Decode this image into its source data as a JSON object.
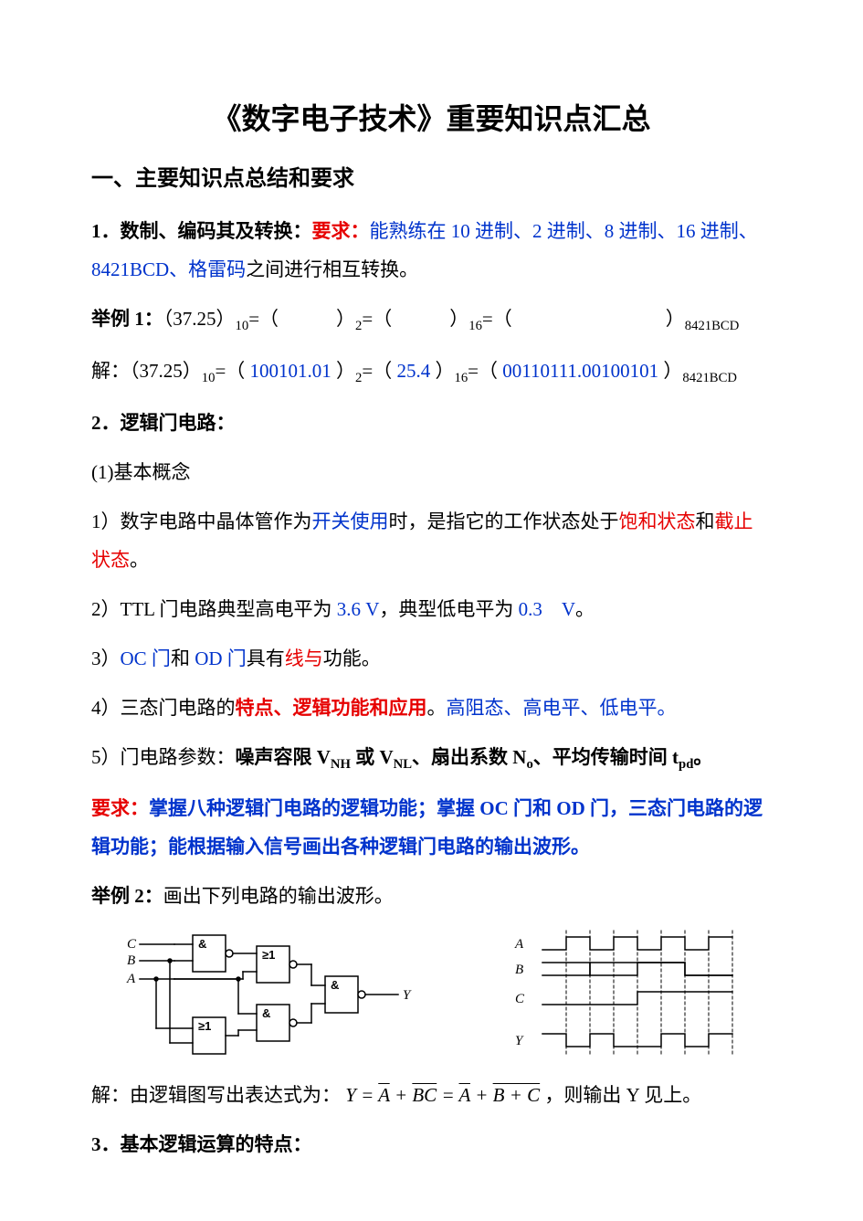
{
  "title": "《数字电子技术》重要知识点汇总",
  "section1_head": "一、主要知识点总结和要求",
  "p1_a": "1．数制、编码其及转换：",
  "p1_b": "要求：",
  "p1_c": "能熟练在 10 进制、2 进制、8 进制、16 进制、8421BCD、格雷码",
  "p1_d": "之间进行相互转换。",
  "p2_a": "举例 1：",
  "p2_b": "（37.25）",
  "p2_sub10a": "10",
  "p2_c": "=（　　　）",
  "p2_sub2": "2",
  "p2_d": "=（　　　）",
  "p2_sub16": "16",
  "p2_e": "=（　　　　　　　　）",
  "p2_sub8421a": "8421BCD",
  "p3_a": "解：（37.25）",
  "p3_sub10b": "10",
  "p3_b": "=（ ",
  "p3_v1": "100101.01",
  "p3_c": " ）",
  "p3_sub2b": "2",
  "p3_d": "=（ ",
  "p3_v2": "25.4",
  "p3_e": " ）",
  "p3_sub16b": "16",
  "p3_f": "=（ ",
  "p3_v3": "00110111.00100101",
  "p3_g": " ）",
  "p3_sub8421b": "8421BCD",
  "p4": "2．逻辑门电路：",
  "p5": "(1)基本概念",
  "p6_a": "1）数字电路中晶体管作为",
  "p6_b": "开关使用",
  "p6_c": "时，是指它的工作状态处于",
  "p6_d": "饱和状态",
  "p6_e": "和",
  "p6_f": "截止状态",
  "p6_g": "。",
  "p7_a": "2）TTL 门电路典型高电平为 ",
  "p7_b": "3.6 V",
  "p7_c": "，典型低电平为 ",
  "p7_d": "0.3　V",
  "p7_e": "。",
  "p8_a": "3）",
  "p8_b": "OC 门",
  "p8_c": "和 ",
  "p8_d": "OD 门",
  "p8_e": "具有",
  "p8_f": "线与",
  "p8_g": "功能。",
  "p9_a": "4）三态门电路的",
  "p9_b": "特点、逻辑功能和应用",
  "p9_c": "。",
  "p9_d": "高阻态、高电平、低电平。",
  "p10_a": "5）门电路参数：",
  "p10_b": "噪声容限 V",
  "p10_nh": "NH",
  "p10_c": " 或 V",
  "p10_nl": "NL",
  "p10_d": "、扇出系数 N",
  "p10_o": "o",
  "p10_e": "、平均传输时间 t",
  "p10_pd": "pd",
  "p10_f": "。",
  "p11_a": "要求：",
  "p11_b": "掌握八种逻辑门电路的逻辑功能；掌握 OC 门和 OD 门，三态门电路的逻辑功能；能根据输入信号画出各种逻辑门电路的输出波形。",
  "p12_a": "举例 2：",
  "p12_b": "画出下列电路的输出波形。",
  "circuit": {
    "labels": {
      "A": "A",
      "B": "B",
      "C": "C",
      "Y": "Y",
      "and": "&",
      "or": "≥1"
    },
    "stroke": "#000000",
    "stroke_width": 1.5,
    "font": "italic 15px 'Times New Roman', serif",
    "font_gate": "bold 13px sans-serif"
  },
  "wave": {
    "labels": {
      "A": "A",
      "B": "B",
      "C": "C",
      "Y": "Y"
    },
    "stroke": "#000000",
    "stroke_width": 1.5,
    "dash": "3,3"
  },
  "p13_a": "解：由逻辑图写出表达式为：",
  "p13_eq_lhs": "Y = ",
  "p13_A": "A",
  "p13_plus1": " + ",
  "p13_BC": "BC",
  "p13_eqmid": " = ",
  "p13_A2": "A",
  "p13_plus2": " + ",
  "p13_BpC": "B + C",
  "p13_b": "，则输出 Y 见上。",
  "p14": "3．基本逻辑运算的特点："
}
